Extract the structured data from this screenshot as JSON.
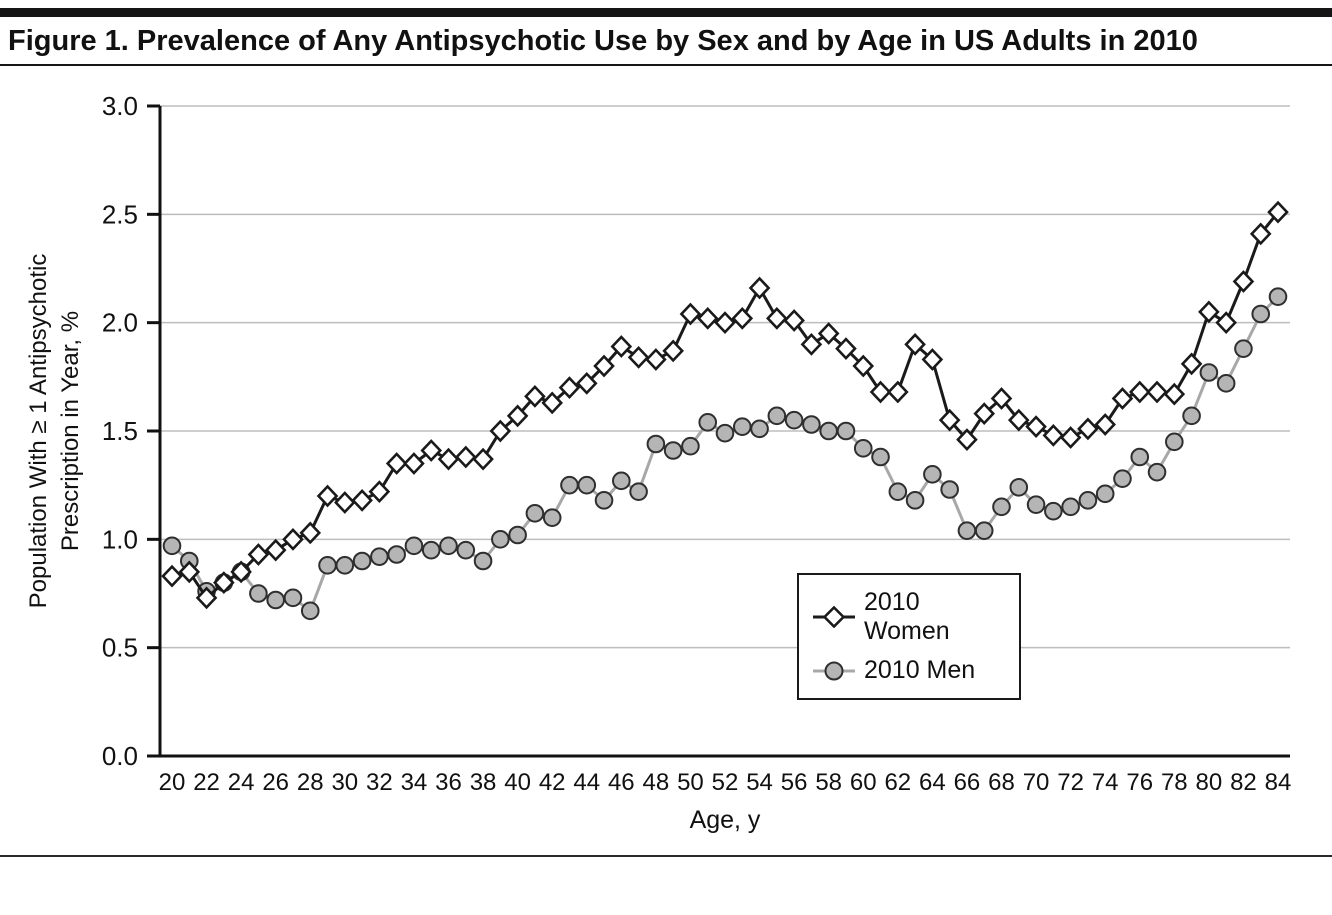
{
  "figure": {
    "title": "Figure 1. Prevalence of Any Antipsychotic Use by Sex and by Age in US Adults in 2010"
  },
  "chart_data": {
    "type": "line",
    "title": "Figure 1. Prevalence of Any Antipsychotic Use by Sex and by Age in US Adults in 2010",
    "xlabel": "Age, y",
    "ylabel": "Population With ≥ 1 Antipsychotic Prescription in Year, %",
    "ylim": [
      0.0,
      3.0
    ],
    "xlim": [
      20,
      84
    ],
    "ytick_labels": [
      "0.0",
      "0.5",
      "1.0",
      "1.5",
      "2.0",
      "2.5",
      "3.0"
    ],
    "xtick_interval": 2,
    "grid": "horizontal-gridlines",
    "legend_position": "inside-right",
    "colors": {
      "women_line": "#1a1a1a",
      "women_marker_fill": "#ffffff",
      "men_line": "#a8a8a8",
      "men_marker_fill": "#b5b5b5",
      "men_marker_stroke": "#2f2f2f",
      "gridline": "#bdbdbd",
      "axis": "#111111"
    },
    "x": [
      20,
      21,
      22,
      23,
      24,
      25,
      26,
      27,
      28,
      29,
      30,
      31,
      32,
      33,
      34,
      35,
      36,
      37,
      38,
      39,
      40,
      41,
      42,
      43,
      44,
      45,
      46,
      47,
      48,
      49,
      50,
      51,
      52,
      53,
      54,
      55,
      56,
      57,
      58,
      59,
      60,
      61,
      62,
      63,
      64,
      65,
      66,
      67,
      68,
      69,
      70,
      71,
      72,
      73,
      74,
      75,
      76,
      77,
      78,
      79,
      80,
      81,
      82,
      83,
      84
    ],
    "series": [
      {
        "name": "2010 Women",
        "marker": "diamond-open",
        "color": "#1a1a1a",
        "values": [
          0.83,
          0.85,
          0.73,
          0.8,
          0.85,
          0.93,
          0.95,
          1.0,
          1.03,
          1.2,
          1.17,
          1.18,
          1.22,
          1.35,
          1.35,
          1.41,
          1.37,
          1.38,
          1.37,
          1.5,
          1.57,
          1.66,
          1.63,
          1.7,
          1.72,
          1.8,
          1.89,
          1.84,
          1.83,
          1.87,
          2.04,
          2.02,
          2.0,
          2.02,
          2.16,
          2.02,
          2.01,
          1.9,
          1.95,
          1.88,
          1.8,
          1.68,
          1.68,
          1.9,
          1.83,
          1.55,
          1.46,
          1.58,
          1.65,
          1.55,
          1.52,
          1.48,
          1.47,
          1.51,
          1.53,
          1.65,
          1.68,
          1.68,
          1.67,
          1.81,
          2.05,
          2.0,
          2.19,
          2.41,
          2.51
        ]
      },
      {
        "name": "2010 Men",
        "marker": "circle-filled",
        "color": "#a8a8a8",
        "marker_fill": "#b5b5b5",
        "marker_stroke": "#2f2f2f",
        "values": [
          0.97,
          0.9,
          0.76,
          0.8,
          0.85,
          0.75,
          0.72,
          0.73,
          0.67,
          0.88,
          0.88,
          0.9,
          0.92,
          0.93,
          0.97,
          0.95,
          0.97,
          0.95,
          0.9,
          1.0,
          1.02,
          1.12,
          1.1,
          1.25,
          1.25,
          1.18,
          1.27,
          1.22,
          1.44,
          1.41,
          1.43,
          1.54,
          1.49,
          1.52,
          1.51,
          1.57,
          1.55,
          1.53,
          1.5,
          1.5,
          1.42,
          1.38,
          1.22,
          1.18,
          1.3,
          1.23,
          1.04,
          1.04,
          1.15,
          1.24,
          1.16,
          1.13,
          1.15,
          1.18,
          1.21,
          1.28,
          1.38,
          1.31,
          1.45,
          1.57,
          1.77,
          1.72,
          1.88,
          2.04,
          2.12
        ]
      }
    ]
  }
}
